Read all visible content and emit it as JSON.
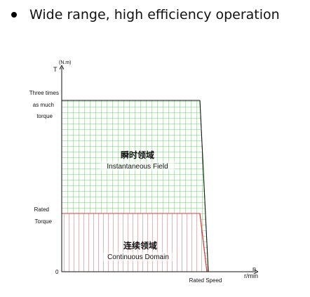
{
  "headline": "Wide range, high efficiency operation",
  "chart_data": {
    "type": "area",
    "axes": {
      "y_symbol": "T",
      "y_unit": "(N.m)",
      "x_symbol": "n",
      "x_unit": "r/min",
      "origin_label": "0",
      "x_tick_labels": [
        "Rated Speed"
      ],
      "y_tick_labels": {
        "three_times": [
          "Three times",
          "as much",
          "torque"
        ],
        "rated": [
          "Rated",
          "Torque"
        ]
      }
    },
    "regions": [
      {
        "id": "instantaneous",
        "label_zh": "瞬时领域",
        "label_en": "Instantaneous Field",
        "torque_level": "3x rated torque",
        "color": "#2fc42f"
      },
      {
        "id": "continuous",
        "label_zh": "连续领域",
        "label_en": "Continuous Domain",
        "torque_level": "1x rated torque",
        "color": "#e03a3a"
      }
    ],
    "y_levels": [
      3,
      1
    ],
    "grid": true
  }
}
